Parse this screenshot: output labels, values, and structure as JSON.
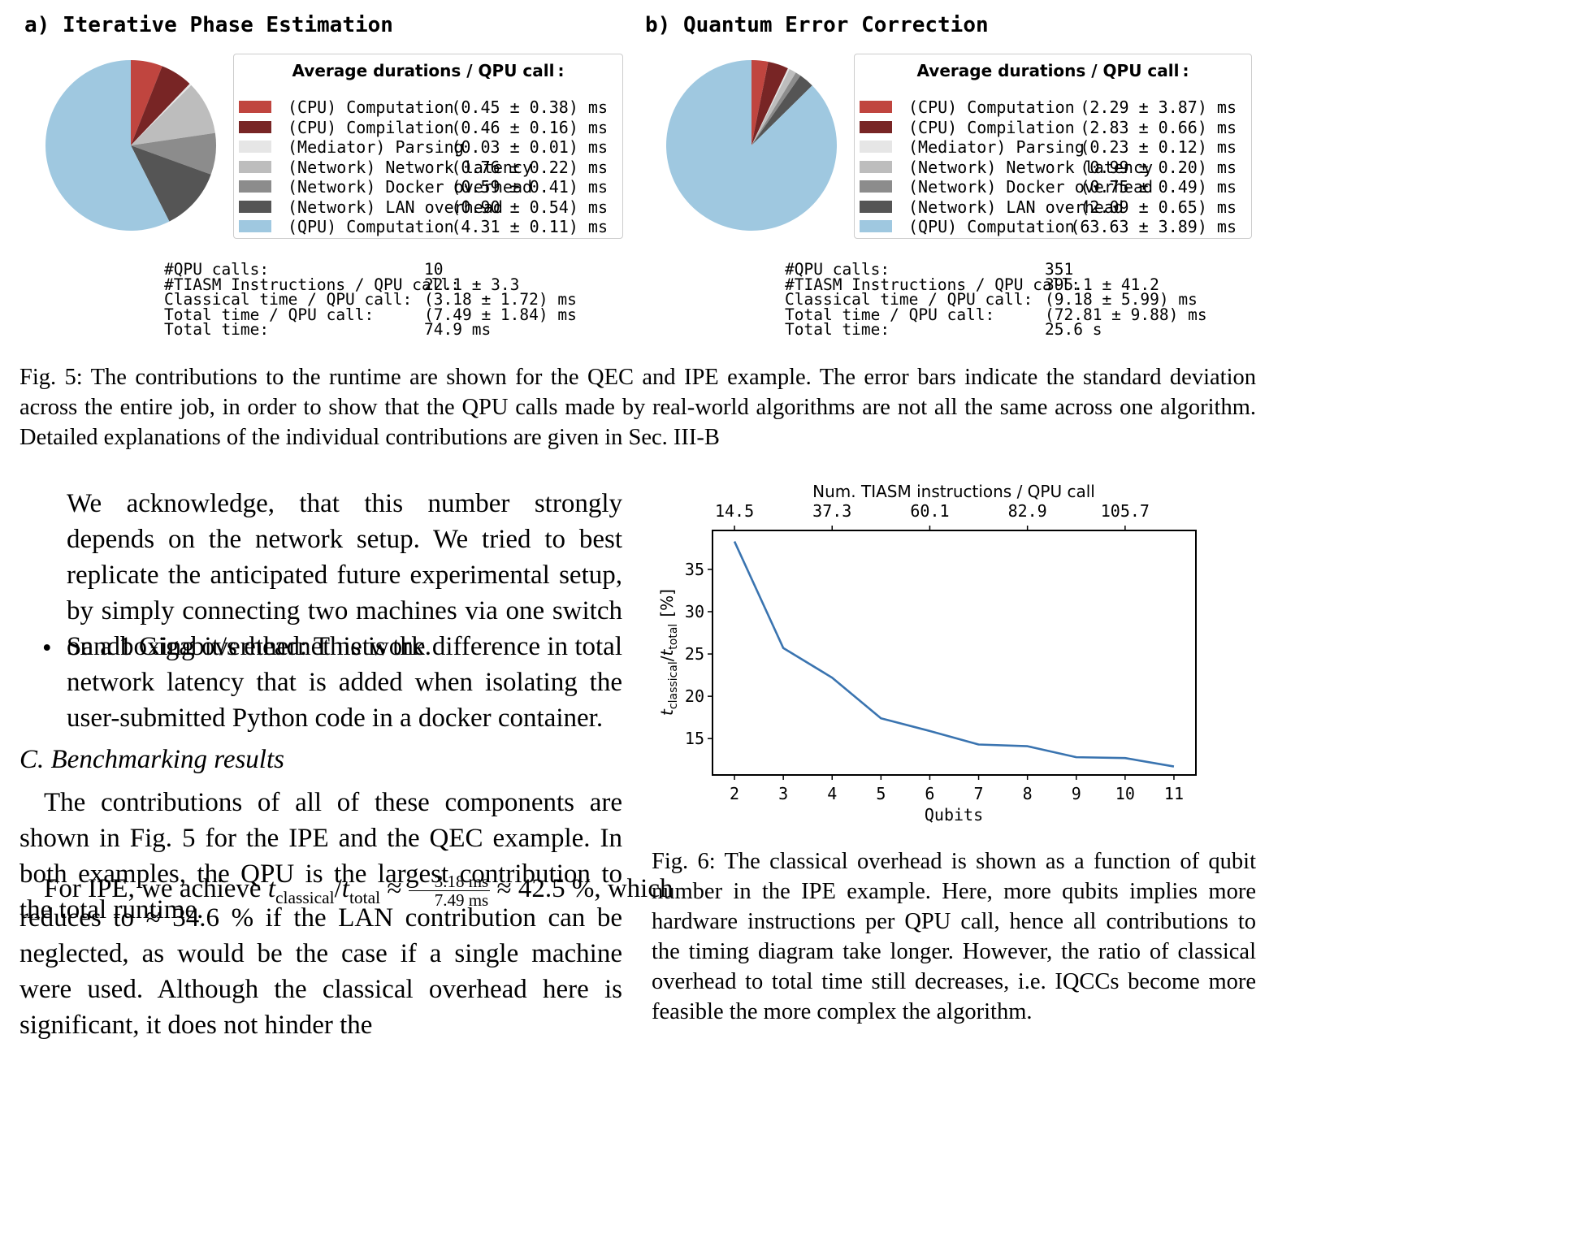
{
  "panel_a": {
    "title": "a) Iterative Phase Estimation",
    "legend_title": "Average durations / QPU call :",
    "items": [
      {
        "label": "(CPU) Computation",
        "value": "(0.45 ± 0.38) ms",
        "color": "#c0453f",
        "mean": 0.45
      },
      {
        "label": "(CPU) Compilation",
        "value": "(0.46 ± 0.16) ms",
        "color": "#782525",
        "mean": 0.46
      },
      {
        "label": "(Mediator) Parsing",
        "value": "(0.03 ± 0.01) ms",
        "color": "#e6e6e6",
        "mean": 0.03
      },
      {
        "label": "(Network) Network latency",
        "value": "(0.76 ± 0.22) ms",
        "color": "#bdbdbd",
        "mean": 0.76
      },
      {
        "label": "(Network) Docker overhead",
        "value": "(0.59 ± 0.41) ms",
        "color": "#8c8c8c",
        "mean": 0.59
      },
      {
        "label": "(Network) LAN overhead",
        "value": "(0.90 ± 0.54) ms",
        "color": "#555555",
        "mean": 0.9
      },
      {
        "label": "(QPU) Computation",
        "value": "(4.31 ± 0.11) ms",
        "color": "#9fc8e0",
        "mean": 4.31
      }
    ],
    "stats": [
      {
        "label": "#QPU calls:",
        "value": "10"
      },
      {
        "label": "#TIASM Instructions / QPU call:",
        "value": "22.1 ± 3.3"
      },
      {
        "label": "Classical time / QPU call:",
        "value": "(3.18 ± 1.72) ms"
      },
      {
        "label": "Total time / QPU call:",
        "value": "(7.49 ± 1.84) ms"
      },
      {
        "label": "Total time:",
        "value": "74.9 ms"
      }
    ]
  },
  "panel_b": {
    "title": "b) Quantum Error Correction",
    "legend_title": "Average durations / QPU call :",
    "items": [
      {
        "label": "(CPU) Computation",
        "value": "(2.29 ± 3.87) ms",
        "color": "#c0453f",
        "mean": 2.29
      },
      {
        "label": "(CPU) Compilation",
        "value": "(2.83 ± 0.66) ms",
        "color": "#782525",
        "mean": 2.83
      },
      {
        "label": "(Mediator) Parsing",
        "value": "(0.23 ± 0.12) ms",
        "color": "#e6e6e6",
        "mean": 0.23
      },
      {
        "label": "(Network) Network latency",
        "value": "(0.99 ± 0.20) ms",
        "color": "#bdbdbd",
        "mean": 0.99
      },
      {
        "label": "(Network) Docker overhead",
        "value": "(0.75 ± 0.49) ms",
        "color": "#8c8c8c",
        "mean": 0.75
      },
      {
        "label": "(Network) LAN overhead",
        "value": "(2.09 ± 0.65) ms",
        "color": "#555555",
        "mean": 2.09
      },
      {
        "label": "(QPU) Computation",
        "value": "(63.63 ± 3.89) ms",
        "color": "#9fc8e0",
        "mean": 63.63
      }
    ],
    "stats": [
      {
        "label": "#QPU calls:",
        "value": "351"
      },
      {
        "label": "#TIASM Instructions / QPU call:",
        "value": "395.1 ± 41.2"
      },
      {
        "label": "Classical time / QPU call:",
        "value": "(9.18 ± 5.99) ms"
      },
      {
        "label": "Total time / QPU call:",
        "value": "(72.81 ± 9.88) ms"
      },
      {
        "label": "Total time:",
        "value": "25.6 s"
      }
    ]
  },
  "fig5_caption": "Fig. 5: The contributions to the runtime are shown for the QEC and IPE example. The error bars indicate the standard deviation across the entire job, in order to show that the QPU calls made by real-world algorithms are not all the same across one algorithm. Detailed explanations of the individual contributions are given in Sec. III-B",
  "body": {
    "para_network": "We acknowledge, that this number strongly depends on the network setup. We tried to best replicate the anticipated future experimental setup, by simply connecting two machines via one switch on a 1 Gigabit/s ethernet network.",
    "bullet_mark": "•",
    "bullet_sandbox": "Sandboxing overhead: This is the difference in total network latency that is added when isolating the user-submitted Python code in a docker container.",
    "section_heading": "C. Benchmarking results",
    "para_contrib": "The contributions of all of these components are shown in Fig. 5 for the IPE and the QEC example. In both examples, the QPU is the largest contribution to the total runtime.",
    "ipe_intro": "For IPE, we achieve ",
    "t_symbol": "t",
    "sub_classical": "classical",
    "slash": "/",
    "sub_total": "total",
    "approx": " ≈ ",
    "frac_num": "3.18 ms",
    "frac_den": "7.49 ms",
    "ipe_result": " ≈ 42.5 %, which",
    "ipe_rest": "reduces to ≈ 34.6 % if the LAN contribution can be neglected, as would be the case if a single machine were used. Although the classical overhead here is significant, it does not hinder the"
  },
  "fig6_caption": "Fig. 6: The classical overhead is shown as a function of qubit number in the IPE example. Here, more qubits implies more hardware instructions per QPU call, hence all contributions to the timing diagram take longer. However, the ratio of classical overhead to total time still decreases, i.e. IQCCs become more feasible the more complex the algorithm.",
  "chart_data": {
    "type": "line",
    "title": "",
    "xlabel": "Qubits",
    "ylabel": "t_classical / t_total [%]",
    "ylabel_parts": {
      "t": "t",
      "classical": "classical",
      "slash": "/",
      "total": "total",
      "unit": "[%]"
    },
    "top_xlabel": "Num. TIASM instructions / QPU call",
    "x": [
      2,
      3,
      4,
      5,
      6,
      7,
      8,
      9,
      10,
      11
    ],
    "y": [
      38.3,
      25.7,
      22.2,
      17.4,
      15.9,
      14.3,
      14.1,
      12.8,
      12.7,
      11.7
    ],
    "xlim": [
      1.55,
      11.45
    ],
    "ylim": [
      10.7,
      39.6
    ],
    "xticks": [
      2,
      3,
      4,
      5,
      6,
      7,
      8,
      9,
      10,
      11
    ],
    "yticks": [
      15,
      20,
      25,
      30,
      35
    ],
    "top_ticks": [
      {
        "x": 2,
        "label": "14.5"
      },
      {
        "x": 4,
        "label": "37.3"
      },
      {
        "x": 6,
        "label": "60.1"
      },
      {
        "x": 8,
        "label": "82.9"
      },
      {
        "x": 10,
        "label": "105.7"
      }
    ],
    "line_color": "#3a74b0",
    "grid": false
  }
}
